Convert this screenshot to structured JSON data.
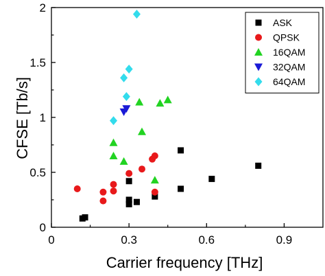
{
  "chart_data": {
    "type": "scatter",
    "xlabel": "Carrier frequency [THz]",
    "ylabel": "CFSE [Tb/s]",
    "xlim": [
      0,
      1.05
    ],
    "ylim": [
      0,
      2
    ],
    "xticks": [
      0,
      0.3,
      0.6,
      0.9
    ],
    "xtick_labels": [
      "0",
      "0.3",
      "0.6",
      "0.9"
    ],
    "yticks": [
      0,
      0.5,
      1,
      1.5,
      2
    ],
    "ytick_labels": [
      "0",
      "0.5",
      "1",
      "1.5",
      "2"
    ],
    "legend_position": "top-right",
    "series": [
      {
        "name": "ASK",
        "marker": "square",
        "color": "#000000",
        "x": [
          0.12,
          0.13,
          0.3,
          0.3,
          0.3,
          0.33,
          0.4,
          0.5,
          0.5,
          0.62,
          0.8
        ],
        "y": [
          0.08,
          0.09,
          0.42,
          0.25,
          0.21,
          0.23,
          0.28,
          0.7,
          0.35,
          0.44,
          0.56
        ]
      },
      {
        "name": "QPSK",
        "marker": "circle",
        "color": "#e8191b",
        "x": [
          0.1,
          0.2,
          0.2,
          0.24,
          0.24,
          0.3,
          0.35,
          0.39,
          0.4,
          0.4
        ],
        "y": [
          0.35,
          0.24,
          0.32,
          0.33,
          0.39,
          0.49,
          0.53,
          0.62,
          0.65,
          0.32
        ]
      },
      {
        "name": "16QAM",
        "marker": "triangle-up",
        "color": "#22d322",
        "x": [
          0.24,
          0.24,
          0.28,
          0.34,
          0.35,
          0.4,
          0.42,
          0.45
        ],
        "y": [
          0.77,
          0.65,
          0.6,
          1.14,
          0.87,
          0.43,
          1.13,
          1.16
        ]
      },
      {
        "name": "32QAM",
        "marker": "triangle-down",
        "color": "#1a1ad6",
        "x": [
          0.28,
          0.29
        ],
        "y": [
          1.05,
          1.08
        ]
      },
      {
        "name": "64QAM",
        "marker": "diamond",
        "color": "#33dcec",
        "x": [
          0.24,
          0.28,
          0.29,
          0.3,
          0.33
        ],
        "y": [
          0.97,
          1.36,
          1.19,
          1.44,
          1.94
        ]
      }
    ]
  }
}
